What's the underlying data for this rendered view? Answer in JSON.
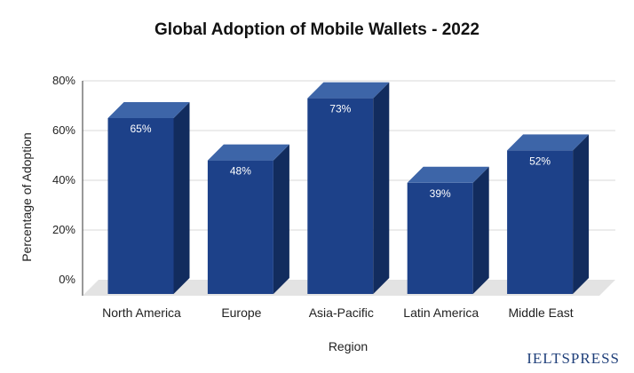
{
  "chart_data": {
    "type": "bar",
    "title": "Global Adoption of Mobile Wallets - 2022",
    "xlabel": "Region",
    "ylabel": "Percentage of Adoption",
    "categories": [
      "North America",
      "Europe",
      "Asia-Pacific",
      "Latin America",
      "Middle East"
    ],
    "values": [
      65,
      48,
      73,
      39,
      52
    ],
    "data_labels": [
      "65%",
      "48%",
      "73%",
      "39%",
      "52%"
    ],
    "ylim": [
      0,
      80
    ],
    "yticks": [
      0,
      20,
      40,
      60,
      80
    ],
    "ytick_labels": [
      "0%",
      "20%",
      "40%",
      "60%",
      "80%"
    ],
    "grid": true,
    "style": "3d-bar",
    "colors": {
      "front": "#1d4189",
      "top": "#3d65a8",
      "side": "#122c5e",
      "floor": "#e3e3e3"
    }
  },
  "watermark": "IELTSPRESS"
}
